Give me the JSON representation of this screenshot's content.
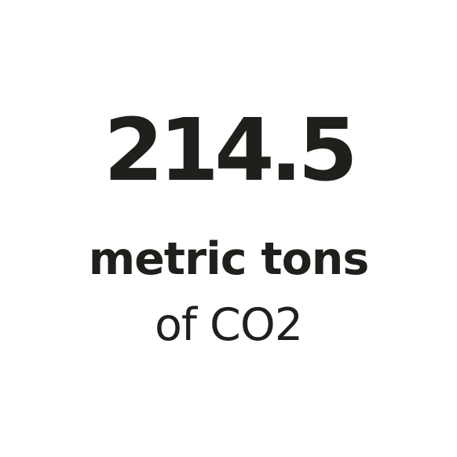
{
  "stat": {
    "value": "214.5",
    "unit_line1": "metric tons",
    "unit_line2": "of CO2"
  },
  "colors": {
    "text": "#1f1f1c",
    "background": "#ffffff"
  }
}
